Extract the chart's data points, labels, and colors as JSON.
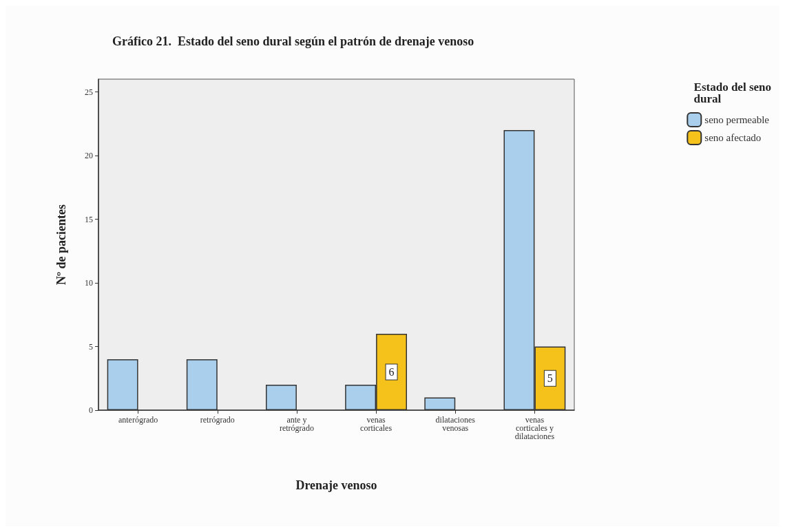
{
  "chart_data": {
    "type": "bar",
    "title": "Gráfico 21.  Estado del seno dural según el patrón de drenaje venoso",
    "xlabel": "Drenaje venoso",
    "ylabel": "Nº de pacientes",
    "legend_title": "Estado del seno dural",
    "legend": "top right",
    "categories": [
      "anterógrado",
      "retrógrado",
      "ante y retrógrado",
      "venas corticales",
      "dilataciones venosas",
      "venas corticales y dilataciones"
    ],
    "series": [
      {
        "name": "seno permeable",
        "color": "#a9cfed",
        "values": [
          4,
          4,
          2,
          2,
          1,
          22
        ]
      },
      {
        "name": "seno afectado",
        "color": "#f5c21b",
        "values": [
          0,
          0,
          0,
          6,
          0,
          5
        ],
        "value_labels": [
          null,
          null,
          null,
          "6",
          null,
          "5"
        ]
      }
    ],
    "ylim": [
      0,
      26
    ],
    "yticks": [
      0,
      5,
      10,
      15,
      20,
      25
    ],
    "grid": false
  }
}
